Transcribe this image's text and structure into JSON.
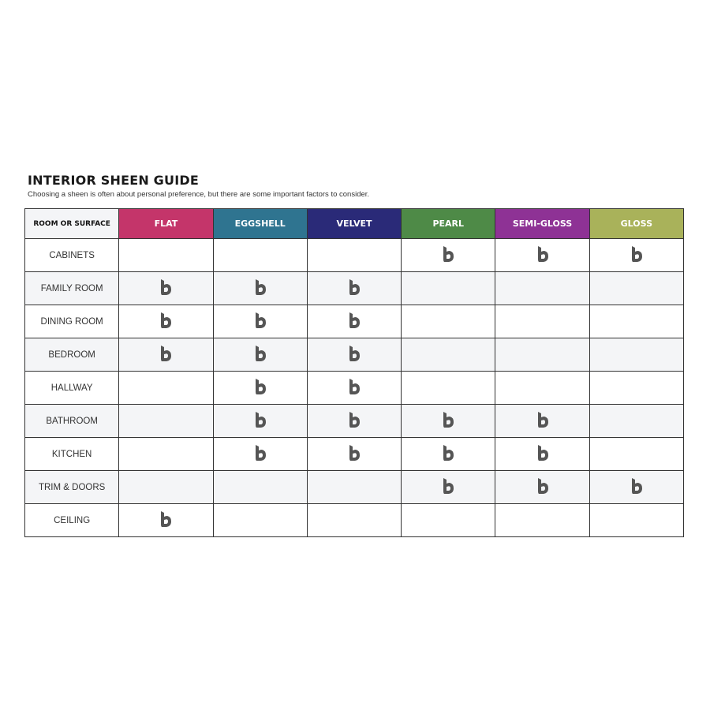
{
  "title": "INTERIOR SHEEN GUIDE",
  "subtitle": "Choosing a sheen is often about personal preference, but there are some important factors to consider.",
  "header_first": "ROOM OR SURFACE",
  "sheens": [
    {
      "label": "FLAT",
      "color": "#c4356a"
    },
    {
      "label": "EGGSHELL",
      "color": "#2f7490"
    },
    {
      "label": "VELVET",
      "color": "#2a2a78"
    },
    {
      "label": "PEARL",
      "color": "#4e8a47"
    },
    {
      "label": "SEMI-GLOSS",
      "color": "#8e3295"
    },
    {
      "label": "GLOSS",
      "color": "#a9b25a"
    }
  ],
  "check_icon": "b-logo-icon",
  "rows": [
    {
      "label": "CABINETS",
      "marks": [
        false,
        false,
        false,
        true,
        true,
        true
      ]
    },
    {
      "label": "FAMILY ROOM",
      "marks": [
        true,
        true,
        true,
        false,
        false,
        false
      ]
    },
    {
      "label": "DINING ROOM",
      "marks": [
        true,
        true,
        true,
        false,
        false,
        false
      ]
    },
    {
      "label": "BEDROOM",
      "marks": [
        true,
        true,
        true,
        false,
        false,
        false
      ]
    },
    {
      "label": "HALLWAY",
      "marks": [
        false,
        true,
        true,
        false,
        false,
        false
      ]
    },
    {
      "label": "BATHROOM",
      "marks": [
        false,
        true,
        true,
        true,
        true,
        false
      ]
    },
    {
      "label": "KITCHEN",
      "marks": [
        false,
        true,
        true,
        true,
        true,
        false
      ]
    },
    {
      "label": "TRIM & DOORS",
      "marks": [
        false,
        false,
        false,
        true,
        true,
        true
      ]
    },
    {
      "label": "CEILING",
      "marks": [
        true,
        false,
        false,
        false,
        false,
        false
      ]
    }
  ]
}
